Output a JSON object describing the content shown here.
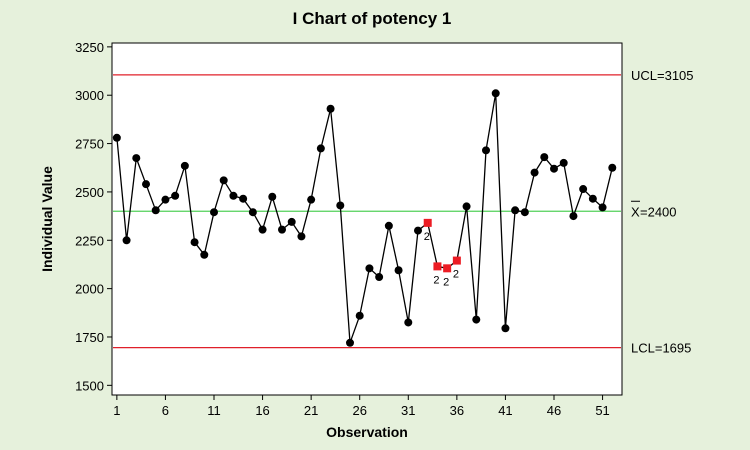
{
  "chart_data": {
    "type": "line",
    "title": "I Chart of potency 1",
    "xlabel": "Observation",
    "ylabel": "Individual Value",
    "xlim": [
      0.5,
      53
    ],
    "ylim": [
      1450,
      3270
    ],
    "x_ticks": [
      1,
      6,
      11,
      16,
      21,
      26,
      31,
      36,
      41,
      46,
      51
    ],
    "y_ticks": [
      1500,
      1750,
      2000,
      2250,
      2500,
      2750,
      3000,
      3250
    ],
    "grid": false,
    "series": [
      {
        "x": [
          1,
          2,
          3,
          4,
          5,
          6,
          7,
          8,
          9,
          10,
          11,
          12,
          13,
          14,
          15,
          16,
          17,
          18,
          19,
          20,
          21,
          22,
          23,
          24,
          25,
          26,
          27,
          28,
          29,
          30,
          31,
          32,
          33,
          34,
          35,
          36,
          37,
          38,
          39,
          40,
          41,
          42,
          43,
          44,
          45,
          46,
          47,
          48,
          49,
          50,
          51,
          52
        ],
        "values": [
          2780,
          2250,
          2675,
          2540,
          2405,
          2460,
          2480,
          2635,
          2240,
          2175,
          2395,
          2560,
          2480,
          2465,
          2395,
          2305,
          2475,
          2305,
          2345,
          2270,
          2460,
          2725,
          2930,
          2430,
          1720,
          1860,
          2105,
          2060,
          2325,
          2095,
          1825,
          2300,
          2340,
          2115,
          2105,
          2145,
          2425,
          1840,
          2715,
          3010,
          1795,
          2405,
          2395,
          2600,
          2680,
          2620,
          2650,
          2375,
          2515,
          2465,
          2420,
          2625
        ]
      }
    ],
    "control_limits": [
      {
        "label": "UCL=3105",
        "value": 3105,
        "color": "#e0202a"
      },
      {
        "label": "=2400",
        "value": 2400,
        "color": "#52d05a",
        "symbol": "X"
      },
      {
        "label": "LCL=1695",
        "value": 1695,
        "color": "#e0202a"
      }
    ],
    "flagged_points": [
      {
        "x": 33,
        "label": "2"
      },
      {
        "x": 34,
        "label": "2"
      },
      {
        "x": 35,
        "label": "2"
      },
      {
        "x": 36,
        "label": "2"
      }
    ],
    "colors": {
      "background": "#e6f1dc",
      "plot_area": "#ffffff",
      "point": "#000000",
      "flagged_point": "#ec1c24",
      "line": "#000000"
    }
  }
}
